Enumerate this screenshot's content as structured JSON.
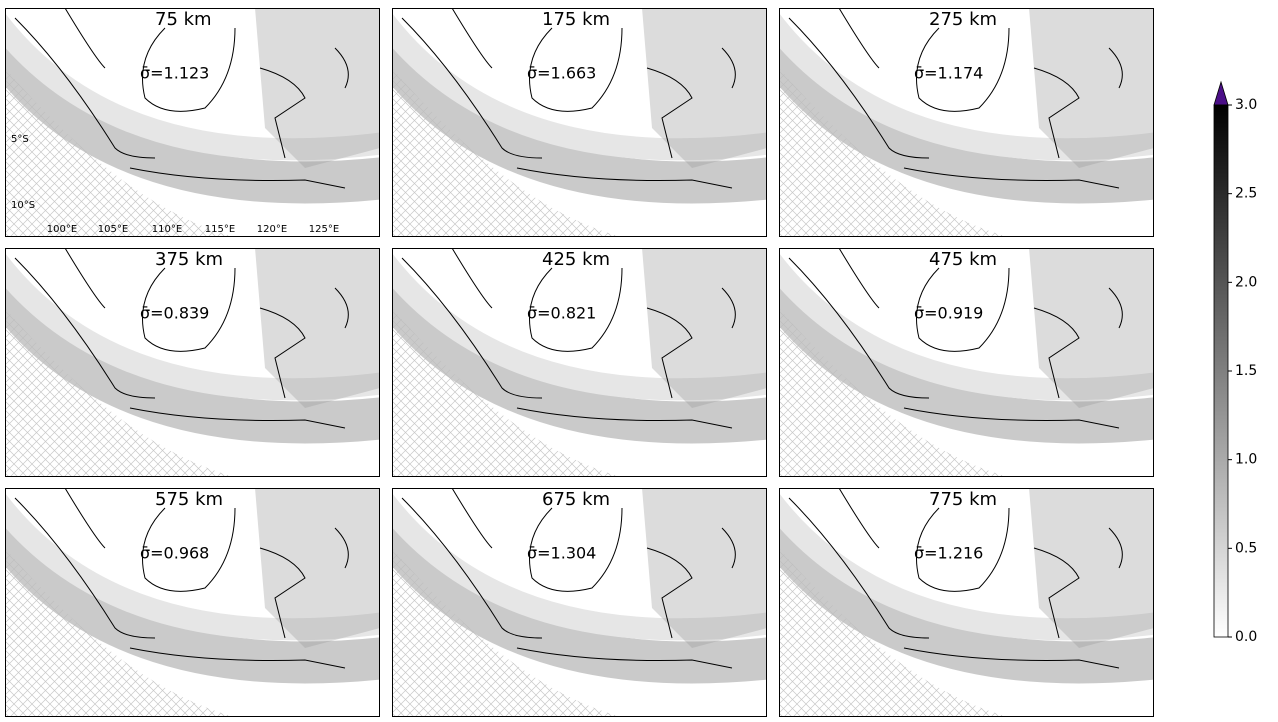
{
  "figure": {
    "panels": [
      {
        "depth": "75 km",
        "sigma": "σ̄=1.123"
      },
      {
        "depth": "175 km",
        "sigma": "σ̄=1.663"
      },
      {
        "depth": "275 km",
        "sigma": "σ̄=1.174"
      },
      {
        "depth": "375 km",
        "sigma": "σ̄=0.839"
      },
      {
        "depth": "425 km",
        "sigma": "σ̄=0.821"
      },
      {
        "depth": "475 km",
        "sigma": "σ̄=0.919"
      },
      {
        "depth": "575 km",
        "sigma": "σ̄=0.968"
      },
      {
        "depth": "675 km",
        "sigma": "σ̄=1.304"
      },
      {
        "depth": "775 km",
        "sigma": "σ̄=1.216"
      }
    ],
    "lat_labels": [
      "5°S",
      "10°S"
    ],
    "lon_labels": [
      "100°E",
      "105°E",
      "110°E",
      "115°E",
      "120°E",
      "125°E"
    ],
    "colorbar": {
      "lim": [
        0,
        3
      ],
      "ticks": [
        {
          "value": 0,
          "label": "0.0"
        },
        {
          "value": 0.5,
          "label": "0.5"
        },
        {
          "value": 1,
          "label": "1.0"
        },
        {
          "value": 1.5,
          "label": "1.5"
        },
        {
          "value": 2,
          "label": "2.0"
        },
        {
          "value": 2.5,
          "label": "2.5"
        },
        {
          "value": 3,
          "label": "3.0"
        }
      ],
      "extend_color": "#4b0f87"
    }
  }
}
